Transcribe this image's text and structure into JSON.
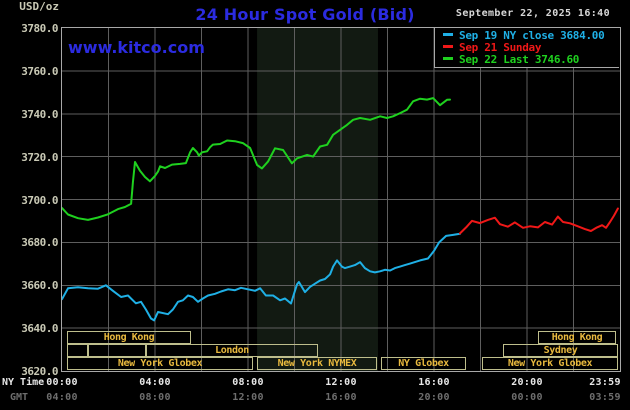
{
  "header": {
    "unit": "USD/oz",
    "title": "24 Hour Spot Gold (Bid)",
    "datetime": "September 22, 2025 16:40",
    "watermark": "www.kitco.com"
  },
  "legend": {
    "entries": [
      {
        "name": "sep19-ny-close",
        "label": "Sep 19 NY close 3684.00",
        "color": "#1FB0E6"
      },
      {
        "name": "sep21-sunday",
        "label": "Sep 21 Sunday",
        "color": "#F01818"
      },
      {
        "name": "sep22-last",
        "label": "Sep 22 Last 3746.60",
        "color": "#1FD11F"
      }
    ]
  },
  "axis": {
    "ny_label": "NY Time",
    "gmt_label": "GMT",
    "y_ticks": [
      "3780.0",
      "3760.0",
      "3740.0",
      "3720.0",
      "3700.0",
      "3680.0",
      "3660.0",
      "3640.0",
      "3620.0"
    ],
    "ny_times": [
      "00:00",
      "04:00",
      "08:00",
      "12:00",
      "16:00",
      "20:00",
      "23:59"
    ],
    "gmt_times": [
      "04:00",
      "08:00",
      "12:00",
      "16:00",
      "20:00",
      "00:00",
      "03:59"
    ]
  },
  "sessions": [
    {
      "row": 1,
      "label": "Hong Kong",
      "start_hour": 0.22,
      "end_hour": 5.55
    },
    {
      "row": 1,
      "label": "Hong Kong",
      "start_hour": 20.47,
      "end_hour": 23.83
    },
    {
      "row": 2,
      "label": "",
      "start_hour": 0.22,
      "end_hour": 1.12
    },
    {
      "row": 2,
      "label": "",
      "start_hour": 1.12,
      "end_hour": 3.61
    },
    {
      "row": 2,
      "label": "London",
      "start_hour": 3.61,
      "end_hour": 11.01
    },
    {
      "row": 2,
      "label": "Sydney",
      "start_hour": 18.97,
      "end_hour": 23.91
    },
    {
      "row": 3,
      "label": "New York Globex",
      "start_hour": 0.22,
      "end_hour": 8.22
    },
    {
      "row": 3,
      "label": "New York NYMEX",
      "start_hour": 8.39,
      "end_hour": 13.55
    },
    {
      "row": 3,
      "label": "NY Globex",
      "start_hour": 13.72,
      "end_hour": 17.38
    },
    {
      "row": 3,
      "label": "New York Globex",
      "start_hour": 18.06,
      "end_hour": 23.91
    }
  ],
  "colors": {
    "background": "#000000",
    "plot_border": "#A8A8A8",
    "gridline": "#5E5E5E",
    "nymex_band": "#121A12",
    "axis_text": "#C9C9B5",
    "time_text": "#E8E8E8",
    "gmt_text": "#6E6E6E",
    "session_text": "#E8B93E",
    "session_border": "#BEBE8C",
    "brand_blue": "#2B2BE0",
    "date_text": "#D8D8D8",
    "line_cyan": "#1FB0E6",
    "line_red": "#F01818",
    "line_green": "#1FD11F"
  },
  "chart_data": {
    "type": "line",
    "title": "24 Hour Spot Gold (Bid)",
    "xlabel": "NY Time (hours)",
    "ylabel": "USD/oz",
    "xlim": [
      0,
      24
    ],
    "ylim": [
      3620,
      3780
    ],
    "y_tick_step": 20,
    "x_gridline_step_hours": 2,
    "grid": true,
    "legend_position": "top-right",
    "nymex_session_band": {
      "start_hour": 8.39,
      "end_hour": 13.59
    },
    "series": [
      {
        "name": "Sep 22 (Last 3746.60)",
        "color": "#1FD11F",
        "points": [
          [
            0,
            3696
          ],
          [
            0.26,
            3693
          ],
          [
            0.69,
            3691.3
          ],
          [
            1.12,
            3690.5
          ],
          [
            1.55,
            3691.6
          ],
          [
            1.98,
            3693.1
          ],
          [
            2.41,
            3695.5
          ],
          [
            2.71,
            3696.5
          ],
          [
            2.97,
            3698
          ],
          [
            3.05,
            3708
          ],
          [
            3.14,
            3717.5
          ],
          [
            3.35,
            3713.5
          ],
          [
            3.57,
            3710.5
          ],
          [
            3.78,
            3708.5
          ],
          [
            4.0,
            3711
          ],
          [
            4.13,
            3713
          ],
          [
            4.22,
            3715.5
          ],
          [
            4.43,
            3714.7
          ],
          [
            4.73,
            3716.3
          ],
          [
            5.08,
            3716.6
          ],
          [
            5.33,
            3717
          ],
          [
            5.51,
            3722
          ],
          [
            5.63,
            3724
          ],
          [
            5.81,
            3722
          ],
          [
            5.89,
            3720.5
          ],
          [
            6.02,
            3722
          ],
          [
            6.24,
            3722.5
          ],
          [
            6.37,
            3724.4
          ],
          [
            6.49,
            3725.6
          ],
          [
            6.8,
            3725.9
          ],
          [
            7.1,
            3727.5
          ],
          [
            7.44,
            3727.2
          ],
          [
            7.78,
            3726.3
          ],
          [
            8.09,
            3724
          ],
          [
            8.39,
            3716.1
          ],
          [
            8.6,
            3714.5
          ],
          [
            8.86,
            3717.7
          ],
          [
            9.16,
            3723.9
          ],
          [
            9.51,
            3723.1
          ],
          [
            9.89,
            3716.9
          ],
          [
            10.11,
            3719.2
          ],
          [
            10.54,
            3720.8
          ],
          [
            10.8,
            3720
          ],
          [
            11.1,
            3724.7
          ],
          [
            11.4,
            3725.5
          ],
          [
            11.66,
            3730.2
          ],
          [
            11.96,
            3732.5
          ],
          [
            12.26,
            3734.8
          ],
          [
            12.52,
            3737.2
          ],
          [
            12.82,
            3738
          ],
          [
            13.25,
            3737.2
          ],
          [
            13.68,
            3738.8
          ],
          [
            13.98,
            3738
          ],
          [
            14.24,
            3738.8
          ],
          [
            14.54,
            3740.3
          ],
          [
            14.84,
            3741.9
          ],
          [
            15.1,
            3745.8
          ],
          [
            15.4,
            3747
          ],
          [
            15.7,
            3746.6
          ],
          [
            15.96,
            3747.3
          ],
          [
            16.26,
            3744
          ],
          [
            16.56,
            3746.5
          ],
          [
            16.69,
            3746.6
          ]
        ]
      },
      {
        "name": "Sep 19 NY close 3684.00",
        "color": "#1FB0E6",
        "points": [
          [
            0,
            3653.5
          ],
          [
            0.26,
            3658.6
          ],
          [
            0.69,
            3659.1
          ],
          [
            1.12,
            3658.6
          ],
          [
            1.55,
            3658.4
          ],
          [
            1.89,
            3660
          ],
          [
            2.19,
            3657.4
          ],
          [
            2.54,
            3654.5
          ],
          [
            2.84,
            3655.2
          ],
          [
            3.18,
            3651.6
          ],
          [
            3.4,
            3652.3
          ],
          [
            3.61,
            3648.7
          ],
          [
            3.83,
            3644.5
          ],
          [
            3.96,
            3643.6
          ],
          [
            4.13,
            3647.5
          ],
          [
            4.56,
            3646.5
          ],
          [
            4.77,
            3648.7
          ],
          [
            4.99,
            3652.3
          ],
          [
            5.2,
            3653
          ],
          [
            5.42,
            3655.2
          ],
          [
            5.63,
            3654.5
          ],
          [
            5.85,
            3652.3
          ],
          [
            6.06,
            3653.8
          ],
          [
            6.28,
            3655.2
          ],
          [
            6.58,
            3656
          ],
          [
            6.84,
            3657.1
          ],
          [
            7.14,
            3658.1
          ],
          [
            7.44,
            3657.7
          ],
          [
            7.7,
            3658.8
          ],
          [
            8.0,
            3658.1
          ],
          [
            8.3,
            3657.4
          ],
          [
            8.52,
            3658.6
          ],
          [
            8.77,
            3655.2
          ],
          [
            9.08,
            3655.2
          ],
          [
            9.38,
            3653
          ],
          [
            9.59,
            3653.8
          ],
          [
            9.85,
            3651.5
          ],
          [
            9.98,
            3656
          ],
          [
            10.11,
            3660.5
          ],
          [
            10.19,
            3661.5
          ],
          [
            10.45,
            3656.8
          ],
          [
            10.67,
            3659.3
          ],
          [
            10.88,
            3660.7
          ],
          [
            11.1,
            3662.2
          ],
          [
            11.31,
            3662.9
          ],
          [
            11.53,
            3665.1
          ],
          [
            11.66,
            3668.7
          ],
          [
            11.83,
            3671.6
          ],
          [
            12.04,
            3668.7
          ],
          [
            12.17,
            3668
          ],
          [
            12.39,
            3668.7
          ],
          [
            12.6,
            3669.4
          ],
          [
            12.82,
            3670.8
          ],
          [
            13.03,
            3668
          ],
          [
            13.25,
            3666.5
          ],
          [
            13.46,
            3666
          ],
          [
            13.68,
            3666.5
          ],
          [
            13.89,
            3667.2
          ],
          [
            14.11,
            3666.9
          ],
          [
            14.32,
            3668
          ],
          [
            14.54,
            3668.7
          ],
          [
            14.75,
            3669.4
          ],
          [
            14.97,
            3670.1
          ],
          [
            15.18,
            3670.8
          ],
          [
            15.4,
            3671.6
          ],
          [
            15.74,
            3672.5
          ],
          [
            16.0,
            3676
          ],
          [
            16.22,
            3680
          ],
          [
            16.52,
            3683
          ],
          [
            16.82,
            3683.5
          ],
          [
            17.12,
            3684
          ]
        ]
      },
      {
        "name": "Sep 21 Sunday",
        "color": "#F01818",
        "points": [
          [
            17.12,
            3684.2
          ],
          [
            17.38,
            3687
          ],
          [
            17.63,
            3690
          ],
          [
            17.98,
            3689
          ],
          [
            18.32,
            3690.5
          ],
          [
            18.62,
            3691.5
          ],
          [
            18.84,
            3688.5
          ],
          [
            19.18,
            3687.3
          ],
          [
            19.48,
            3689.3
          ],
          [
            19.83,
            3686.8
          ],
          [
            20.13,
            3687.5
          ],
          [
            20.47,
            3687
          ],
          [
            20.77,
            3689.5
          ],
          [
            21.08,
            3688.3
          ],
          [
            21.33,
            3692
          ],
          [
            21.55,
            3689.5
          ],
          [
            21.85,
            3688.9
          ],
          [
            22.19,
            3687.5
          ],
          [
            22.49,
            3686.2
          ],
          [
            22.75,
            3685.3
          ],
          [
            23.01,
            3687
          ],
          [
            23.23,
            3688
          ],
          [
            23.4,
            3686.8
          ],
          [
            23.57,
            3689.5
          ],
          [
            23.74,
            3692.5
          ],
          [
            23.91,
            3695.8
          ]
        ]
      }
    ]
  }
}
